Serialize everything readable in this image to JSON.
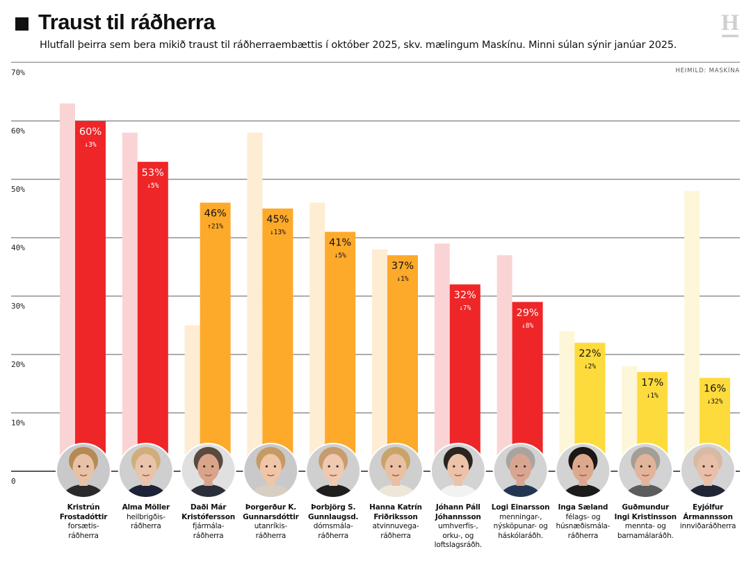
{
  "header": {
    "title": "Traust til ráðherra",
    "subtitle": "Hlutfall þeirra sem bera mikið traust til ráðherraembættis í október 2025, skv. mælingum Maskínu. Minni súlan sýnir janúar 2025.",
    "source": "HEIMILD: MASKÍNA",
    "logo_letter": "H"
  },
  "colors": {
    "red": "#ee2628",
    "red_light": "#fad4d4",
    "orange": "#fda92a",
    "orange_light": "#feecd3",
    "yellow": "#fedb3c",
    "yellow_light": "#fdf6d8",
    "grid": "#7a7a7a",
    "text_on_red": "#ffffff",
    "text_on_other": "#111111"
  },
  "chart_data": {
    "type": "bar",
    "title": "Traust til ráðherra",
    "subtitle": "Hlutfall þeirra sem bera mikið traust til ráðherraembættis í október 2025, skv. mælingum Maskínu. Minni súlan sýnir janúar 2025.",
    "xlabel": "",
    "ylabel": "",
    "ylim": [
      0,
      70
    ],
    "yticks": [
      0,
      10,
      20,
      30,
      40,
      50,
      60,
      70
    ],
    "ytick_labels": [
      "0",
      "10%",
      "20%",
      "30%",
      "40%",
      "50%",
      "60%",
      "70%"
    ],
    "grid": true,
    "series": [
      {
        "name": "Janúar 2025",
        "values": [
          63,
          58,
          25,
          58,
          46,
          38,
          39,
          37,
          24,
          18,
          48
        ]
      },
      {
        "name": "Október 2025",
        "values": [
          60,
          53,
          46,
          45,
          41,
          37,
          32,
          29,
          22,
          17,
          16
        ]
      }
    ],
    "categories": [
      "Kristrún Frostadóttir",
      "Alma Möller",
      "Daði Már Kristófersson",
      "Þorgerður K. Gunnarsdóttir",
      "Þorbjörg S. Gunnlaugsd.",
      "Hanna Katrín Friðriksson",
      "Jóhann Páll Jóhannsson",
      "Logi Einarsson",
      "Inga Sæland",
      "Guðmundur Ingi Kristinsson",
      "Eyjólfur Ármannsson"
    ],
    "data_labels": [
      "60%",
      "53%",
      "46%",
      "45%",
      "41%",
      "37%",
      "32%",
      "29%",
      "22%",
      "17%",
      "16%"
    ],
    "change_labels": [
      "↓3%",
      "↓5%",
      "↑21%",
      "↓13%",
      "↓5%",
      "↓1%",
      "↓7%",
      "↓8%",
      "↓2%",
      "↓1%",
      "↓32%"
    ],
    "party_color": [
      "red",
      "red",
      "orange",
      "orange",
      "orange",
      "orange",
      "red",
      "red",
      "yellow",
      "yellow",
      "yellow"
    ]
  },
  "people": [
    {
      "name": "Kristrún\nFrostadóttir",
      "role": "forsætis-\nráðherra",
      "skin": "#e8c2a6",
      "hair": "#b58a55",
      "bg": "#c9c9cb",
      "cloth": "#2a2a2a"
    },
    {
      "name": "Alma Möller",
      "role": "heilbrigðis-\nráðherra",
      "skin": "#e9c3ab",
      "hair": "#cfae7b",
      "bg": "#cfcfcf",
      "cloth": "#1d2238"
    },
    {
      "name": "Daði Már\nKristófersson",
      "role": "fjármála-\nráðherra",
      "skin": "#d9a48a",
      "hair": "#5a4a40",
      "bg": "#e0e0e0",
      "cloth": "#2b2f3a"
    },
    {
      "name": "Þorgerður K.\nGunnarsdóttir",
      "role": "utanríkis-\nráðherra",
      "skin": "#efc6a8",
      "hair": "#c69a63",
      "bg": "#c9c9cb",
      "cloth": "#d8cfc2"
    },
    {
      "name": "Þorbjörg S.\nGunnlaugsd.",
      "role": "dómsmála-\nráðherra",
      "skin": "#efcab0",
      "hair": "#c79c6e",
      "bg": "#cfcfcf",
      "cloth": "#1e1e1e"
    },
    {
      "name": "Hanna Katrín\nFriðriksson",
      "role": "atvinnuvega-\nráðherra",
      "skin": "#e9c0a3",
      "hair": "#c9a46a",
      "bg": "#cfcfcf",
      "cloth": "#efe6da"
    },
    {
      "name": "Jóhann Páll\nJóhannsson",
      "role": "umhverfis-,\norku-, og\nloftslagsráðh.",
      "skin": "#ecc2a9",
      "hair": "#2a2420",
      "bg": "#d3d3d3",
      "cloth": "#f2f2f2"
    },
    {
      "name": "Logi Einarsson",
      "role": "menningar-,\nnýsköpunar- og\nháskólaráðh.",
      "skin": "#d8a690",
      "hair": "#a9a4a0",
      "bg": "#d3d3d3",
      "cloth": "#233651"
    },
    {
      "name": "Inga Sæland",
      "role": "félags- og\nhúsnæðismála-\nráðherra",
      "skin": "#dca98e",
      "hair": "#1c1614",
      "bg": "#d3d3d3",
      "cloth": "#1b1b1b"
    },
    {
      "name": "Guðmundur\nIngi Kristinsson",
      "role": "mennta- og\nbarnamálaráðh.",
      "skin": "#e2b49c",
      "hair": "#a39e96",
      "bg": "#d3d3d3",
      "cloth": "#5c5c5c"
    },
    {
      "name": "Eyjólfur\nÁrmannsson",
      "role": "innviðaráðherra",
      "skin": "#e8bfa8",
      "hair": "#d8b9a4",
      "bg": "#d3d3d3",
      "cloth": "#1f2535"
    }
  ]
}
